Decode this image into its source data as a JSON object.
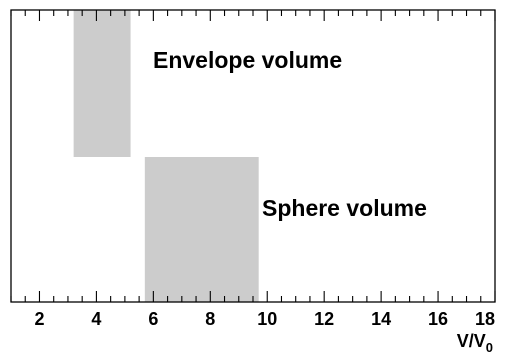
{
  "chart_data": {
    "type": "bar",
    "orientation": "horizontal-range",
    "xlabel": "V/V",
    "xlabel_subscript": "0",
    "xlim": [
      1,
      18
    ],
    "x_ticks": [
      2,
      4,
      6,
      8,
      10,
      12,
      14,
      16,
      18
    ],
    "x_minor_step": 0.5,
    "grid": false,
    "legend": "none",
    "bar_color": "#cccccc",
    "series": [
      {
        "label": "Envelope volume",
        "range": [
          3.2,
          5.2
        ]
      },
      {
        "label": "Sphere volume",
        "range": [
          5.7,
          9.7
        ]
      }
    ]
  }
}
